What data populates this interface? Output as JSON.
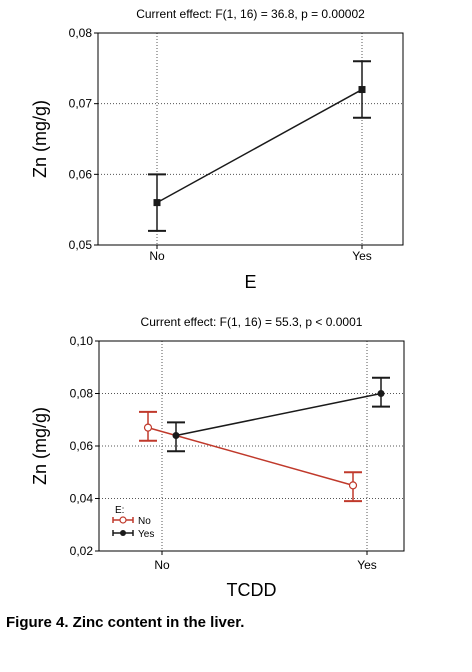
{
  "caption": "Figure 4. Zinc content in the liver.",
  "chart_data": [
    {
      "type": "line",
      "title": "Current effect: F(1, 16) = 36.8, p = 0.00002",
      "xlabel": "E",
      "ylabel": "Zn (mg/g)",
      "categories": [
        "No",
        "Yes"
      ],
      "ylim": [
        0.05,
        0.08
      ],
      "yticks": [
        "0,05",
        "0,06",
        "0,07",
        "0,08"
      ],
      "grid": true,
      "series": [
        {
          "color": "#1a1a1a",
          "marker": "filled-square",
          "values": [
            0.056,
            0.072
          ],
          "err_low": [
            0.052,
            0.068
          ],
          "err_high": [
            0.06,
            0.076
          ]
        }
      ]
    },
    {
      "type": "line",
      "title": "Current effect: F(1, 16) = 55.3, p < 0.0001",
      "xlabel": "TCDD",
      "ylabel": "Zn (mg/g)",
      "categories": [
        "No",
        "Yes"
      ],
      "ylim": [
        0.02,
        0.1
      ],
      "yticks": [
        "0,02",
        "0,04",
        "0,06",
        "0,08",
        "0,10"
      ],
      "grid": true,
      "legend_title": "E:",
      "legend_position": "bottom-left",
      "series": [
        {
          "name": "No",
          "color": "#c0392b",
          "marker": "open-circle",
          "values": [
            0.067,
            0.045
          ],
          "err_low": [
            0.062,
            0.039
          ],
          "err_high": [
            0.073,
            0.05
          ]
        },
        {
          "name": "Yes",
          "color": "#1a1a1a",
          "marker": "filled-circle",
          "values": [
            0.064,
            0.08
          ],
          "err_low": [
            0.058,
            0.075
          ],
          "err_high": [
            0.069,
            0.086
          ]
        }
      ]
    }
  ]
}
